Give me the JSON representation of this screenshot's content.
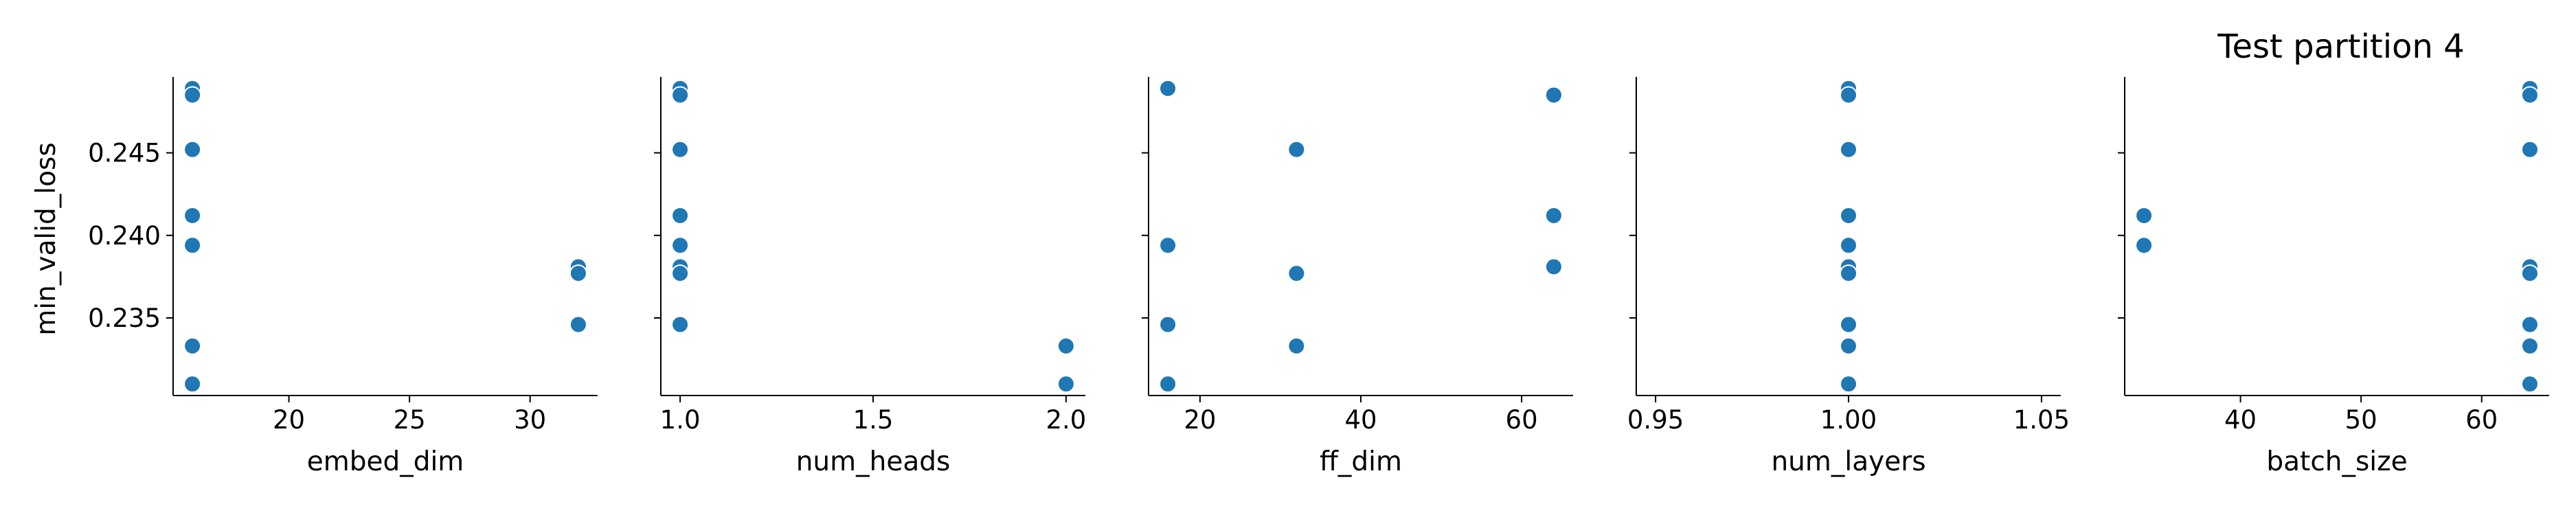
{
  "figure": {
    "title": "Test partition 4",
    "ylabel": "min_valid_loss"
  },
  "chart_data": [
    {
      "type": "scatter",
      "xlabel": "embed_dim",
      "ylabel": "min_valid_loss",
      "xlim": [
        15.2,
        32.8
      ],
      "ylim": [
        0.2303,
        0.2496
      ],
      "xticks": [
        20,
        25,
        30
      ],
      "xtick_labels": [
        "20",
        "25",
        "30"
      ],
      "yticks": [
        0.235,
        0.24,
        0.245
      ],
      "ytick_labels": [
        "0.235",
        "0.240",
        "0.245"
      ],
      "show_yticklabels": true,
      "color": "#1f77b4",
      "points": [
        {
          "x": 16,
          "y": 0.2489
        },
        {
          "x": 16,
          "y": 0.2485
        },
        {
          "x": 16,
          "y": 0.2452
        },
        {
          "x": 16,
          "y": 0.2412
        },
        {
          "x": 16,
          "y": 0.2394
        },
        {
          "x": 16,
          "y": 0.2333
        },
        {
          "x": 16,
          "y": 0.231
        },
        {
          "x": 32,
          "y": 0.2381
        },
        {
          "x": 32,
          "y": 0.2377
        },
        {
          "x": 32,
          "y": 0.2346
        }
      ]
    },
    {
      "type": "scatter",
      "xlabel": "num_heads",
      "xlim": [
        0.95,
        2.05
      ],
      "ylim": [
        0.2303,
        0.2496
      ],
      "xticks": [
        1.0,
        1.5,
        2.0
      ],
      "xtick_labels": [
        "1.0",
        "1.5",
        "2.0"
      ],
      "yticks": [
        0.235,
        0.24,
        0.245
      ],
      "show_yticklabels": false,
      "color": "#1f77b4",
      "points": [
        {
          "x": 1,
          "y": 0.2489
        },
        {
          "x": 1,
          "y": 0.2485
        },
        {
          "x": 1,
          "y": 0.2452
        },
        {
          "x": 1,
          "y": 0.2412
        },
        {
          "x": 1,
          "y": 0.2394
        },
        {
          "x": 1,
          "y": 0.2381
        },
        {
          "x": 1,
          "y": 0.2377
        },
        {
          "x": 1,
          "y": 0.2346
        },
        {
          "x": 2,
          "y": 0.2333
        },
        {
          "x": 2,
          "y": 0.231
        }
      ]
    },
    {
      "type": "scatter",
      "xlabel": "ff_dim",
      "xlim": [
        13.6,
        66.4
      ],
      "ylim": [
        0.2303,
        0.2496
      ],
      "xticks": [
        20,
        40,
        60
      ],
      "xtick_labels": [
        "20",
        "40",
        "60"
      ],
      "yticks": [
        0.235,
        0.24,
        0.245
      ],
      "show_yticklabels": false,
      "color": "#1f77b4",
      "points": [
        {
          "x": 16,
          "y": 0.2489
        },
        {
          "x": 16,
          "y": 0.2394
        },
        {
          "x": 16,
          "y": 0.2346
        },
        {
          "x": 16,
          "y": 0.231
        },
        {
          "x": 32,
          "y": 0.2452
        },
        {
          "x": 32,
          "y": 0.2377
        },
        {
          "x": 32,
          "y": 0.2333
        },
        {
          "x": 64,
          "y": 0.2485
        },
        {
          "x": 64,
          "y": 0.2412
        },
        {
          "x": 64,
          "y": 0.2381
        }
      ]
    },
    {
      "type": "scatter",
      "xlabel": "num_layers",
      "xlim": [
        0.945,
        1.055
      ],
      "ylim": [
        0.2303,
        0.2496
      ],
      "xticks": [
        0.95,
        1.0,
        1.05
      ],
      "xtick_labels": [
        "0.95",
        "1.00",
        "1.05"
      ],
      "yticks": [
        0.235,
        0.24,
        0.245
      ],
      "show_yticklabels": false,
      "color": "#1f77b4",
      "points": [
        {
          "x": 1,
          "y": 0.2489
        },
        {
          "x": 1,
          "y": 0.2485
        },
        {
          "x": 1,
          "y": 0.2452
        },
        {
          "x": 1,
          "y": 0.2412
        },
        {
          "x": 1,
          "y": 0.2394
        },
        {
          "x": 1,
          "y": 0.2381
        },
        {
          "x": 1,
          "y": 0.2377
        },
        {
          "x": 1,
          "y": 0.2346
        },
        {
          "x": 1,
          "y": 0.2333
        },
        {
          "x": 1,
          "y": 0.231
        }
      ]
    },
    {
      "type": "scatter",
      "xlabel": "batch_size",
      "xlim": [
        30.4,
        65.6
      ],
      "ylim": [
        0.2303,
        0.2496
      ],
      "xticks": [
        40,
        50,
        60
      ],
      "xtick_labels": [
        "40",
        "50",
        "60"
      ],
      "yticks": [
        0.235,
        0.24,
        0.245
      ],
      "show_yticklabels": false,
      "color": "#1f77b4",
      "points": [
        {
          "x": 32,
          "y": 0.2412
        },
        {
          "x": 32,
          "y": 0.2394
        },
        {
          "x": 64,
          "y": 0.2489
        },
        {
          "x": 64,
          "y": 0.2485
        },
        {
          "x": 64,
          "y": 0.2452
        },
        {
          "x": 64,
          "y": 0.2381
        },
        {
          "x": 64,
          "y": 0.2377
        },
        {
          "x": 64,
          "y": 0.2346
        },
        {
          "x": 64,
          "y": 0.2333
        },
        {
          "x": 64,
          "y": 0.231
        }
      ]
    }
  ]
}
